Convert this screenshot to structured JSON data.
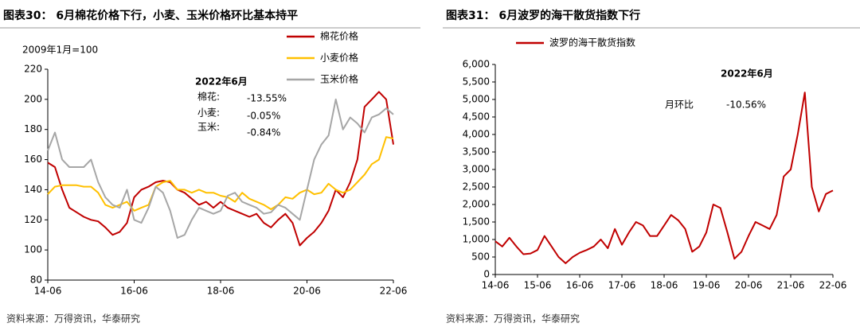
{
  "chart_data": [
    {
      "type": "line",
      "title": "图表30： 6月棉花价格下行，小麦、玉米价格环比基本持平",
      "y_label": "2009年1月=100",
      "source": "资料来源：万得资讯，华泰研究",
      "annotations": [
        "2022年6月",
        "棉花:",
        "-13.55%",
        "小麦:",
        "-0.05%",
        "玉米:",
        "-0.84%"
      ],
      "categories": [
        "14-06",
        null,
        null,
        null,
        null,
        null,
        null,
        null,
        null,
        null,
        null,
        null,
        "16-06",
        null,
        null,
        null,
        null,
        null,
        null,
        null,
        null,
        null,
        null,
        null,
        "18-06",
        null,
        null,
        null,
        null,
        null,
        null,
        null,
        null,
        null,
        null,
        null,
        "20-06",
        null,
        null,
        null,
        null,
        null,
        null,
        null,
        null,
        null,
        null,
        null,
        "22-06"
      ],
      "ylim": [
        80,
        220
      ],
      "yticks": [
        80,
        100,
        120,
        140,
        160,
        180,
        200,
        220
      ],
      "grid": false,
      "series": [
        {
          "name": "棉花价格",
          "color": "#c00000",
          "values": [
            158,
            155,
            140,
            128,
            125,
            122,
            120,
            119,
            115,
            110,
            112,
            118,
            135,
            140,
            142,
            145,
            146,
            145,
            140,
            138,
            134,
            130,
            132,
            128,
            132,
            128,
            126,
            124,
            122,
            124,
            118,
            115,
            120,
            124,
            118,
            103,
            108,
            112,
            118,
            126,
            140,
            135,
            145,
            160,
            195,
            200,
            205,
            200,
            170
          ]
        },
        {
          "name": "小麦价格",
          "color": "#ffc000",
          "values": [
            137,
            142,
            143,
            143,
            143,
            142,
            142,
            138,
            130,
            128,
            130,
            132,
            126,
            128,
            130,
            142,
            145,
            146,
            140,
            140,
            138,
            140,
            138,
            138,
            136,
            135,
            132,
            138,
            134,
            132,
            130,
            127,
            130,
            135,
            134,
            138,
            140,
            137,
            138,
            144,
            140,
            138,
            140,
            145,
            150,
            157,
            160,
            175,
            174
          ]
        },
        {
          "name": "玉米价格",
          "color": "#a6a6a6",
          "values": [
            166,
            178,
            160,
            155,
            155,
            155,
            160,
            145,
            135,
            130,
            128,
            140,
            120,
            118,
            128,
            142,
            138,
            126,
            108,
            110,
            120,
            128,
            126,
            124,
            126,
            136,
            138,
            132,
            130,
            128,
            124,
            125,
            130,
            128,
            124,
            120,
            140,
            160,
            170,
            176,
            200,
            180,
            188,
            184,
            178,
            188,
            190,
            194,
            190
          ]
        }
      ]
    },
    {
      "type": "line",
      "title": "图表31： 6月波罗的海干散货指数下行",
      "source": "资料来源：万得资讯，华泰研究",
      "annotations": [
        "2022年6月",
        "月环比",
        "-10.56%"
      ],
      "categories": [
        "14-06",
        null,
        null,
        null,
        null,
        null,
        "15-06",
        null,
        null,
        null,
        null,
        null,
        "16-06",
        null,
        null,
        null,
        null,
        null,
        "17-06",
        null,
        null,
        null,
        null,
        null,
        "18-06",
        null,
        null,
        null,
        null,
        null,
        "19-06",
        null,
        null,
        null,
        null,
        null,
        "20-06",
        null,
        null,
        null,
        null,
        null,
        "21-06",
        null,
        null,
        null,
        null,
        null,
        "22-06"
      ],
      "ylim": [
        0,
        6000
      ],
      "yticks": [
        0,
        500,
        {
          "value": 1000,
          "label": "1,000"
        },
        {
          "value": 1500,
          "label": "1,500"
        },
        {
          "value": 2000,
          "label": "2,000"
        },
        {
          "value": 2500,
          "label": "2,500"
        },
        {
          "value": 3000,
          "label": "3,000"
        },
        {
          "value": 3500,
          "label": "3,500"
        },
        {
          "value": 4000,
          "label": "4,000"
        },
        {
          "value": 4500,
          "label": "4,500"
        },
        {
          "value": 5000,
          "label": "5,000"
        },
        {
          "value": 5500,
          "label": "5,500"
        },
        {
          "value": 6000,
          "label": "6,000"
        }
      ],
      "grid": false,
      "series": [
        {
          "name": "波罗的海干散货指数",
          "color": "#c00000",
          "values": [
            950,
            800,
            1050,
            800,
            580,
            600,
            700,
            1100,
            800,
            500,
            320,
            500,
            620,
            700,
            800,
            1000,
            750,
            1300,
            850,
            1200,
            1500,
            1400,
            1100,
            1100,
            1400,
            1700,
            1550,
            1300,
            650,
            800,
            1200,
            2000,
            1900,
            1200,
            450,
            650,
            1100,
            1500,
            1400,
            1300,
            1700,
            2800,
            3000,
            4000,
            5200,
            2500,
            1800,
            2300,
            2400
          ]
        }
      ]
    }
  ]
}
